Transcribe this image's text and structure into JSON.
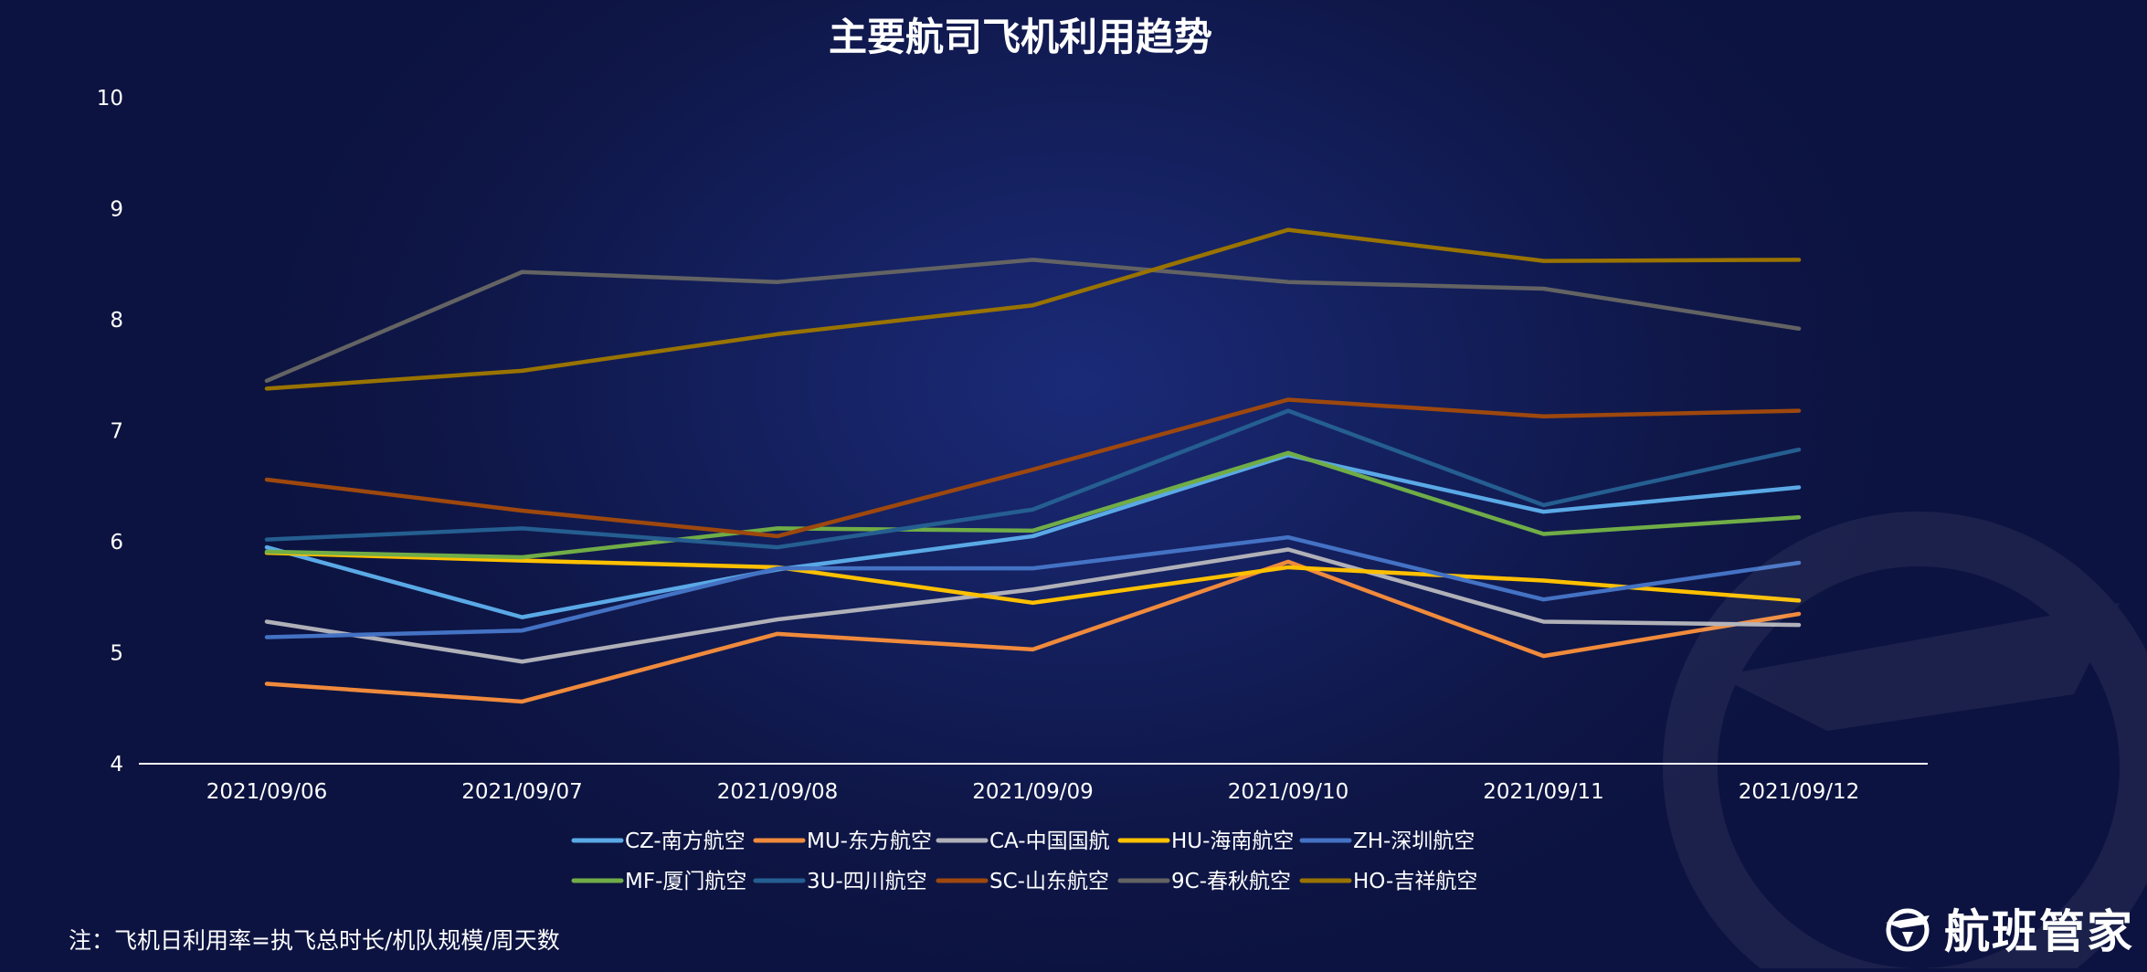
{
  "chart_data": {
    "type": "line",
    "title": "主要航司飞机利用趋势",
    "xlabel": "",
    "ylabel": "",
    "ylim": [
      4,
      10
    ],
    "yticks": [
      4,
      5,
      6,
      7,
      8,
      9,
      10
    ],
    "categories": [
      "2021/09/06",
      "2021/09/07",
      "2021/09/08",
      "2021/09/09",
      "2021/09/10",
      "2021/09/11",
      "2021/09/12"
    ],
    "grid": false,
    "legend_position": "bottom",
    "series": [
      {
        "name": "CZ-南方航空",
        "color": "#5aa9e6",
        "values": [
          5.95,
          5.32,
          5.75,
          6.05,
          6.78,
          6.27,
          6.49
        ]
      },
      {
        "name": "MU-东方航空",
        "color": "#f08a3c",
        "values": [
          4.72,
          4.56,
          5.17,
          5.03,
          5.82,
          4.97,
          5.35
        ]
      },
      {
        "name": "CA-中国国航",
        "color": "#b0b0b8",
        "values": [
          5.28,
          4.92,
          5.3,
          5.57,
          5.93,
          5.28,
          5.25
        ]
      },
      {
        "name": "HU-海南航空",
        "color": "#ffc000",
        "values": [
          5.9,
          5.83,
          5.77,
          5.45,
          5.77,
          5.65,
          5.47
        ]
      },
      {
        "name": "ZH-深圳航空",
        "color": "#4472c4",
        "values": [
          5.14,
          5.2,
          5.76,
          5.76,
          6.04,
          5.48,
          5.81
        ]
      },
      {
        "name": "MF-厦门航空",
        "color": "#70ad47",
        "values": [
          5.91,
          5.86,
          6.12,
          6.1,
          6.8,
          6.07,
          6.22
        ]
      },
      {
        "name": "3U-四川航空",
        "color": "#255e91",
        "values": [
          6.02,
          6.12,
          5.95,
          6.29,
          7.18,
          6.33,
          6.83
        ]
      },
      {
        "name": "SC-山东航空",
        "color": "#9e480e",
        "values": [
          6.56,
          6.28,
          6.05,
          6.65,
          7.28,
          7.13,
          7.18
        ]
      },
      {
        "name": "9C-春秋航空",
        "color": "#636363",
        "values": [
          7.45,
          8.43,
          8.34,
          8.54,
          8.34,
          8.28,
          7.92
        ]
      },
      {
        "name": "HO-吉祥航空",
        "color": "#997300",
        "values": [
          7.38,
          7.54,
          7.87,
          8.13,
          8.81,
          8.53,
          8.54
        ]
      }
    ]
  },
  "footnote": "注：飞机日利用率=执飞总时长/机队规模/周天数",
  "brand": {
    "name": "航班管家",
    "icon": "airplane-logo-icon"
  },
  "colors": {
    "axis": "#ffffff",
    "background": "#101848"
  }
}
